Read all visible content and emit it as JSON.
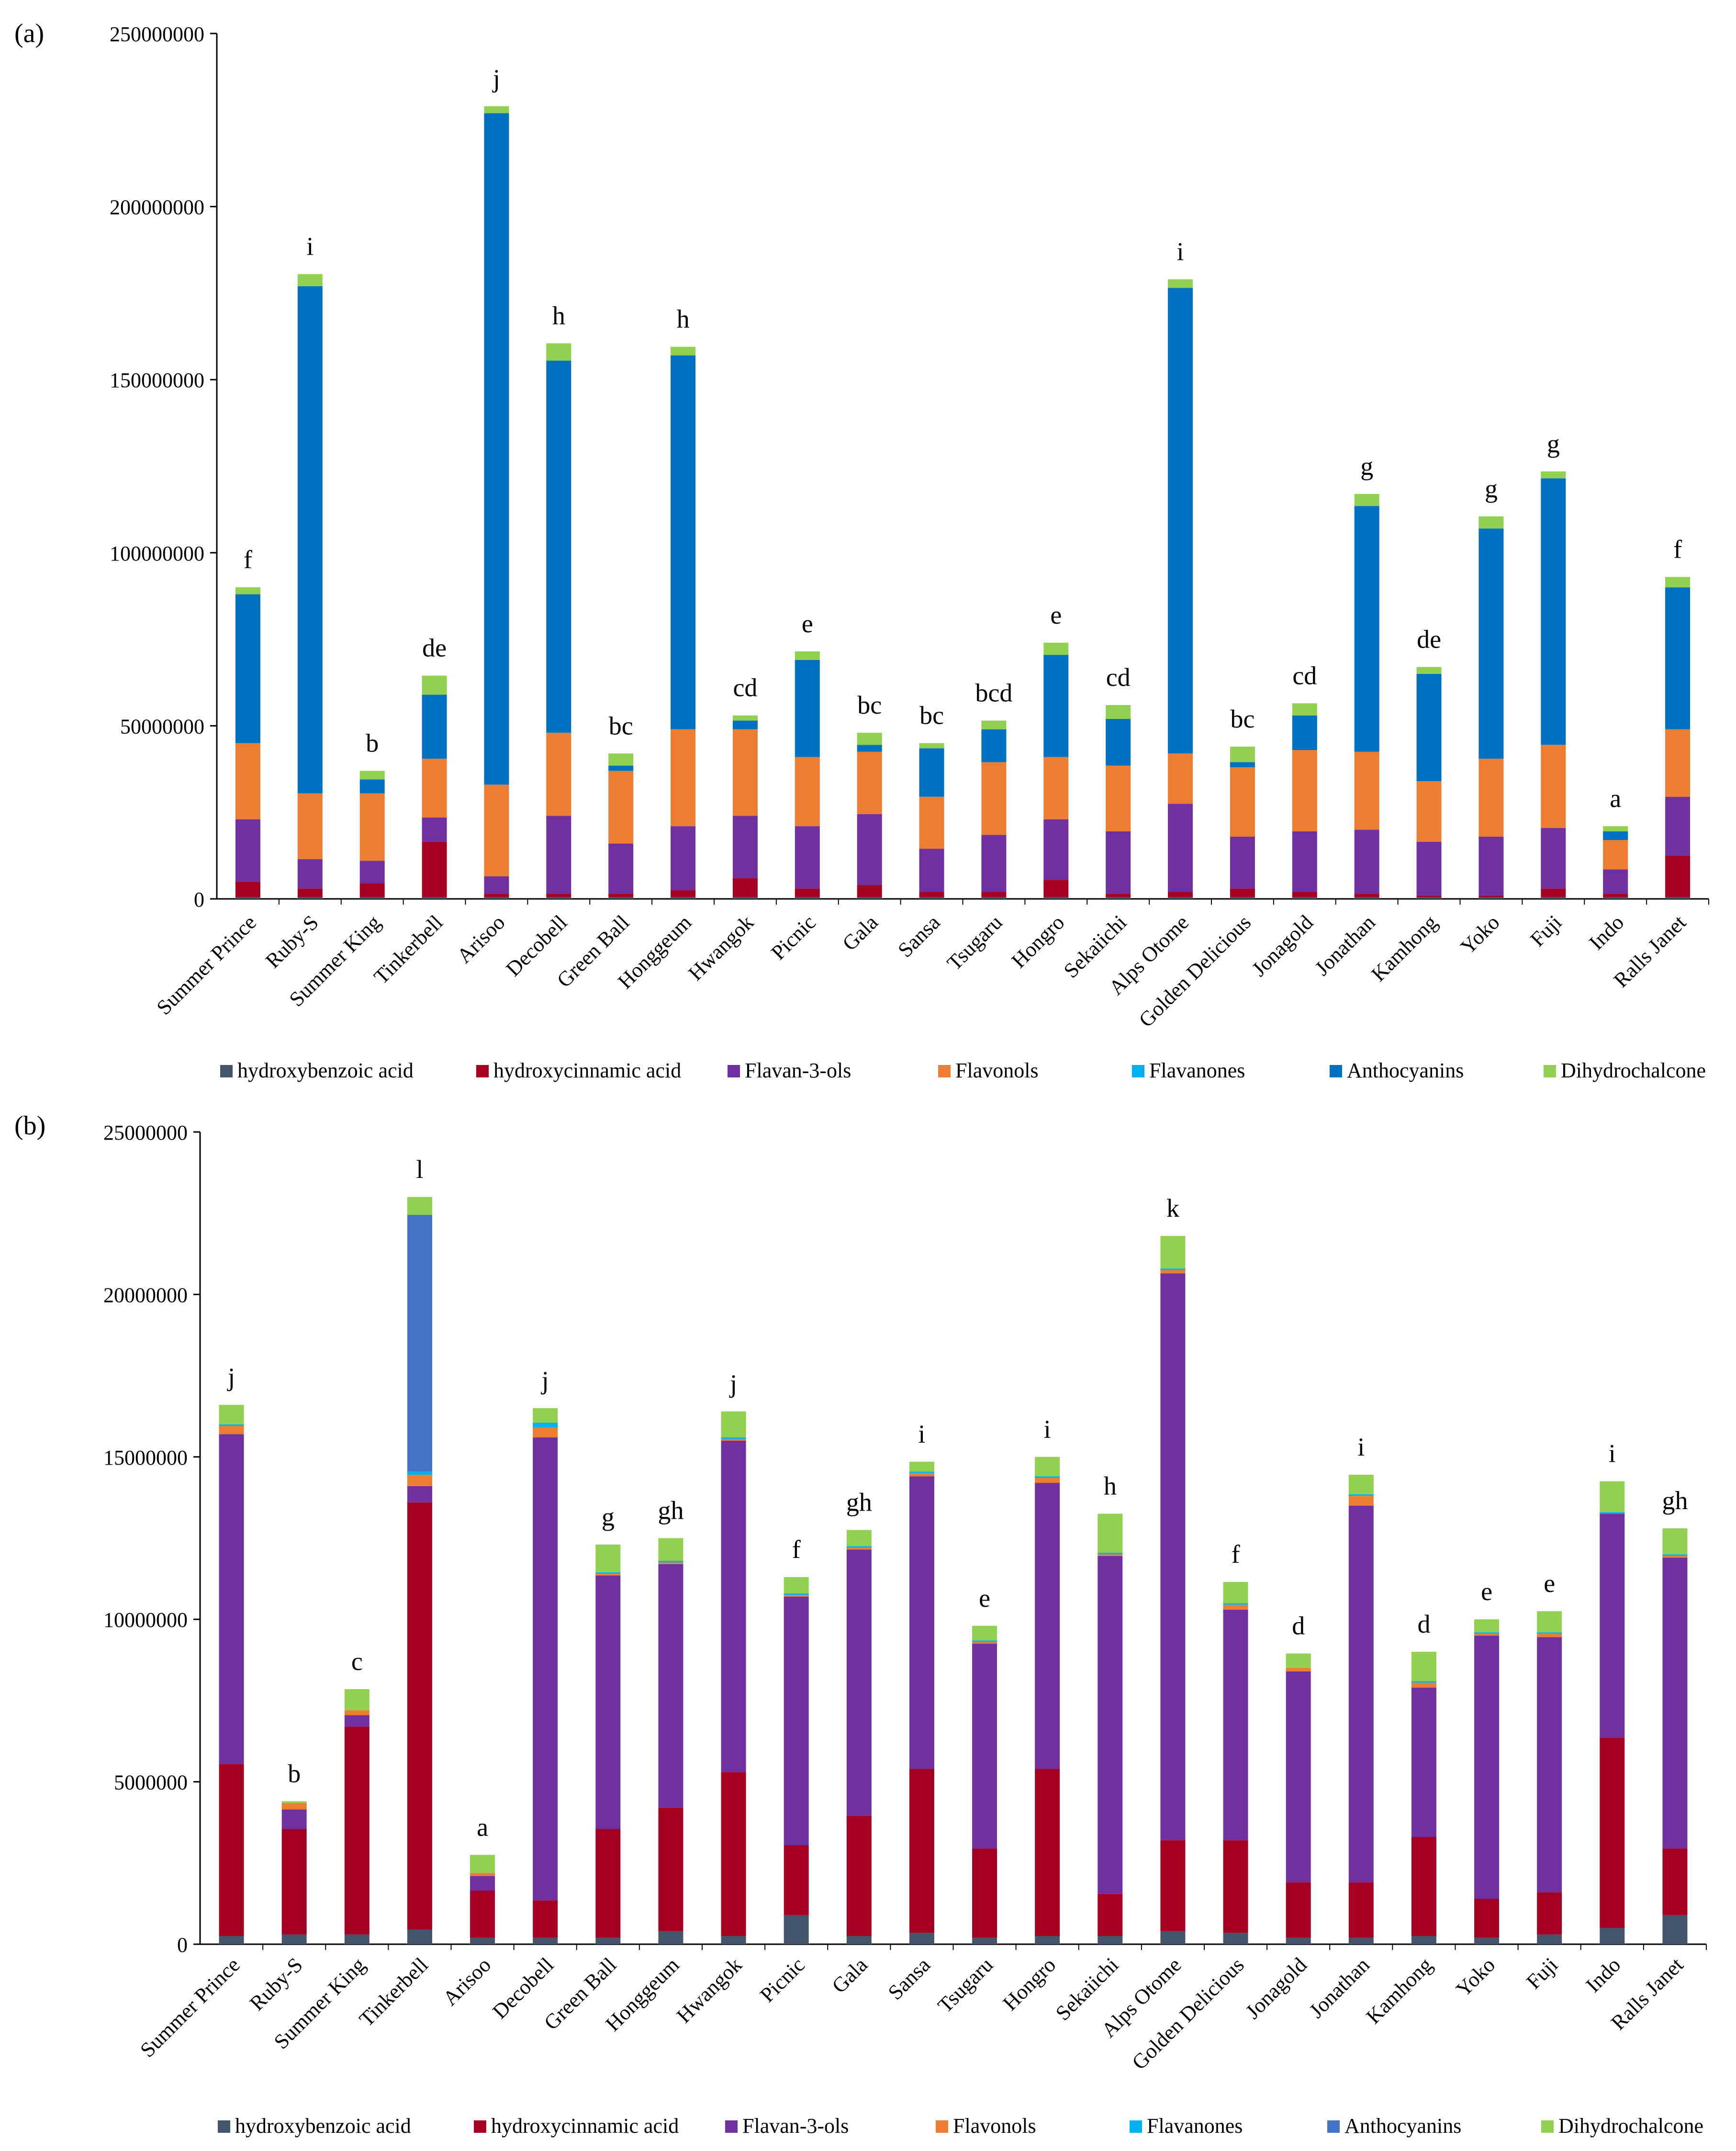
{
  "legend_labels": [
    "hydroxybenzoic acid",
    "hydroxycinnamic acid",
    "Flavan-3-ols",
    "Flavonols",
    "Flavanones",
    "Anthocyanins",
    "Dihydrochalcone"
  ],
  "chart_data": [
    {
      "type": "bar",
      "stacked": true,
      "panel_label": "(a)",
      "legend_position": "bottom",
      "ylim": [
        0,
        250000000
      ],
      "ytick_labels": [
        "0",
        "50000000",
        "100000000",
        "150000000",
        "200000000",
        "250000000"
      ],
      "categories": [
        "Summer Prince",
        "Ruby-S",
        "Summer King",
        "Tinkerbell",
        "Arisoo",
        "Decobell",
        "Green Ball",
        "Honggeum",
        "Hwangok",
        "Picnic",
        "Gala",
        "Sansa",
        "Tsugaru",
        "Hongro",
        "Sekaiichi",
        "Alps Otome",
        "Golden Delicious",
        "Jonagold",
        "Jonathan",
        "Kamhong",
        "Yoko",
        "Fuji",
        "Indo",
        "Ralls Janet"
      ],
      "significance_letters": [
        "f",
        "i",
        "b",
        "de",
        "j",
        "h",
        "bc",
        "h",
        "cd",
        "e",
        "bc",
        "bc",
        "bcd",
        "e",
        "cd",
        "i",
        "bc",
        "cd",
        "g",
        "de",
        "g",
        "g",
        "a",
        "f"
      ],
      "series": [
        {
          "name": "hydroxybenzoic acid",
          "color": "#44546a",
          "values": [
            500000,
            500000,
            500000,
            500000,
            500000,
            500000,
            500000,
            500000,
            500000,
            500000,
            500000,
            500000,
            500000,
            500000,
            500000,
            500000,
            500000,
            500000,
            500000,
            500000,
            500000,
            500000,
            500000,
            500000
          ]
        },
        {
          "name": "hydroxycinnamic acid",
          "color": "#a50021",
          "values": [
            4500000,
            2500000,
            4000000,
            16000000,
            1000000,
            1000000,
            1000000,
            2000000,
            5500000,
            2500000,
            3500000,
            1500000,
            1500000,
            5000000,
            1000000,
            1500000,
            2500000,
            1500000,
            1000000,
            500000,
            500000,
            2500000,
            1000000,
            12000000
          ]
        },
        {
          "name": "Flavan-3-ols",
          "color": "#7030a0",
          "values": [
            18000000,
            8500000,
            6500000,
            7000000,
            5000000,
            22500000,
            14500000,
            18500000,
            18000000,
            18000000,
            20500000,
            12500000,
            16500000,
            17500000,
            18000000,
            25500000,
            15000000,
            17500000,
            18500000,
            15500000,
            17000000,
            17500000,
            7000000,
            17000000
          ]
        },
        {
          "name": "Flavonols",
          "color": "#ed7d31",
          "values": [
            22000000,
            19000000,
            19500000,
            17000000,
            26500000,
            24000000,
            21000000,
            28000000,
            25000000,
            20000000,
            18000000,
            15000000,
            21000000,
            18000000,
            19000000,
            14500000,
            20000000,
            23500000,
            22500000,
            17500000,
            22500000,
            24000000,
            8500000,
            19500000
          ]
        },
        {
          "name": "Flavanones",
          "color": "#00b0f0",
          "values": [
            0,
            0,
            0,
            0,
            0,
            0,
            0,
            0,
            0,
            0,
            0,
            0,
            0,
            0,
            0,
            0,
            0,
            0,
            0,
            0,
            0,
            0,
            0,
            0
          ]
        },
        {
          "name": "Anthocyanins",
          "color": "#0070c0",
          "values": [
            43000000,
            146500000,
            4000000,
            18500000,
            194000000,
            107500000,
            1500000,
            108000000,
            2500000,
            28000000,
            2000000,
            14000000,
            9500000,
            29500000,
            13500000,
            134500000,
            1500000,
            10000000,
            71000000,
            31000000,
            66500000,
            77000000,
            2500000,
            41000000
          ]
        },
        {
          "name": "Dihydrochalcone",
          "color": "#92d050",
          "values": [
            2000000,
            3500000,
            2500000,
            5500000,
            2000000,
            5000000,
            3500000,
            2500000,
            1500000,
            2500000,
            3500000,
            1500000,
            2500000,
            3500000,
            4000000,
            2500000,
            4500000,
            3500000,
            3500000,
            2000000,
            3500000,
            2000000,
            1500000,
            3000000
          ]
        }
      ]
    },
    {
      "type": "bar",
      "stacked": true,
      "panel_label": "(b)",
      "legend_position": "bottom",
      "ylim": [
        0,
        25000000
      ],
      "ytick_labels": [
        "0",
        "5000000",
        "10000000",
        "15000000",
        "20000000",
        "25000000"
      ],
      "categories": [
        "Summer Prince",
        "Ruby-S",
        "Summer King",
        "Tinkerbell",
        "Arisoo",
        "Decobell",
        "Green Ball",
        "Honggeum",
        "Hwangok",
        "Picnic",
        "Gala",
        "Sansa",
        "Tsugaru",
        "Hongro",
        "Sekaiichi",
        "Alps Otome",
        "Golden Delicious",
        "Jonagold",
        "Jonathan",
        "Kamhong",
        "Yoko",
        "Fuji",
        "Indo",
        "Ralls Janet"
      ],
      "significance_letters": [
        "j",
        "b",
        "c",
        "l",
        "a",
        "j",
        "g",
        "gh",
        "j",
        "f",
        "gh",
        "i",
        "e",
        "i",
        "h",
        "k",
        "f",
        "d",
        "i",
        "d",
        "e",
        "e",
        "i",
        "gh"
      ],
      "series": [
        {
          "name": "hydroxybenzoic acid",
          "color": "#44546a",
          "values": [
            250000,
            300000,
            300000,
            450000,
            200000,
            200000,
            200000,
            400000,
            250000,
            900000,
            250000,
            350000,
            200000,
            250000,
            250000,
            400000,
            350000,
            200000,
            200000,
            250000,
            200000,
            300000,
            500000,
            900000
          ]
        },
        {
          "name": "hydroxycinnamic acid",
          "color": "#a50021",
          "values": [
            5300000,
            3250000,
            6400000,
            13150000,
            1450000,
            1150000,
            3350000,
            3800000,
            5050000,
            2150000,
            3700000,
            5050000,
            2750000,
            5150000,
            1300000,
            2800000,
            2850000,
            1700000,
            1700000,
            3050000,
            1200000,
            1300000,
            5850000,
            2050000
          ]
        },
        {
          "name": "Flavan-3-ols",
          "color": "#7030a0",
          "values": [
            10150000,
            600000,
            350000,
            500000,
            450000,
            14250000,
            7800000,
            7500000,
            10200000,
            7650000,
            8200000,
            9000000,
            6300000,
            8800000,
            10400000,
            17450000,
            7100000,
            6500000,
            11600000,
            4600000,
            8100000,
            7850000,
            6900000,
            8950000
          ]
        },
        {
          "name": "Flavonols",
          "color": "#ed7d31",
          "values": [
            250000,
            200000,
            150000,
            350000,
            100000,
            300000,
            50000,
            50000,
            50000,
            50000,
            50000,
            100000,
            50000,
            150000,
            50000,
            100000,
            150000,
            100000,
            300000,
            150000,
            50000,
            100000,
            0,
            50000
          ]
        },
        {
          "name": "Flavanones",
          "color": "#00b0f0",
          "values": [
            50000,
            0,
            0,
            100000,
            0,
            150000,
            50000,
            50000,
            50000,
            50000,
            50000,
            50000,
            50000,
            50000,
            50000,
            50000,
            50000,
            0,
            50000,
            50000,
            50000,
            50000,
            50000,
            50000
          ]
        },
        {
          "name": "Anthocyanins",
          "color": "#4472c4",
          "values": [
            0,
            0,
            0,
            7900000,
            0,
            0,
            0,
            0,
            0,
            0,
            0,
            0,
            0,
            0,
            0,
            0,
            0,
            0,
            0,
            0,
            0,
            0,
            0,
            0
          ]
        },
        {
          "name": "Dihydrochalcone",
          "color": "#92d050",
          "values": [
            600000,
            50000,
            650000,
            550000,
            550000,
            450000,
            850000,
            700000,
            800000,
            500000,
            500000,
            300000,
            450000,
            600000,
            1200000,
            1000000,
            650000,
            450000,
            600000,
            900000,
            400000,
            650000,
            950000,
            800000
          ]
        }
      ]
    }
  ]
}
